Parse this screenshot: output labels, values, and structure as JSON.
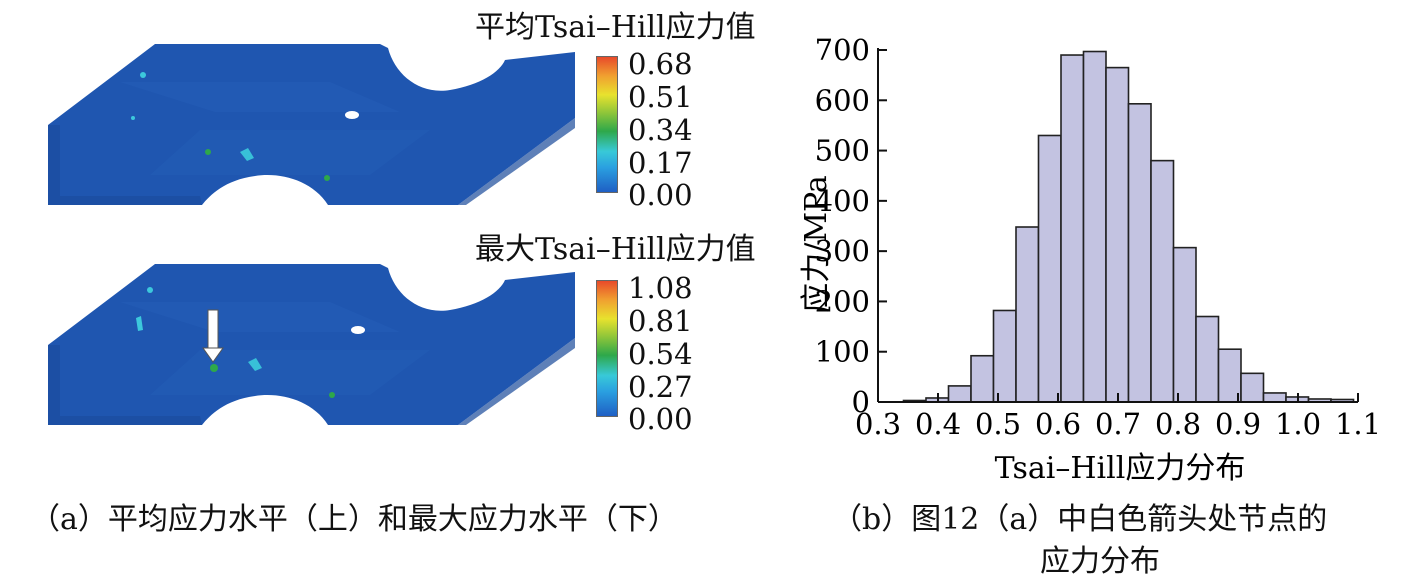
{
  "panel_a": {
    "top": {
      "title": "平均Tsai–Hill应力值",
      "ticks": [
        "0.68",
        "0.51",
        "0.34",
        "0.17",
        "0.00"
      ]
    },
    "bottom": {
      "title": "最大Tsai–Hill应力值",
      "ticks": [
        "1.08",
        "0.81",
        "0.54",
        "0.27",
        "0.00"
      ]
    },
    "caption": "（a）平均应力水平（上）和最大应力水平（下）"
  },
  "panel_b": {
    "caption_line1": "（b）图12（a）中白色箭头处节点的",
    "caption_line2": "应力分布"
  },
  "colors": {
    "bar_fill": "#c3c3e1",
    "bar_stroke": "#222222",
    "mesh": "#1f56b0",
    "mesh_dark": "#1a4a9a"
  },
  "chart_data": {
    "type": "bar",
    "title": "",
    "xlabel": "Tsai–Hill应力分布",
    "ylabel": "应力/MPa",
    "xlim": [
      0.3,
      1.1
    ],
    "ylim": [
      0,
      700
    ],
    "xticks": [
      "0.3",
      "0.4",
      "0.5",
      "0.6",
      "0.7",
      "0.8",
      "0.9",
      "1.0",
      "1.1"
    ],
    "yticks": [
      "0",
      "100",
      "200",
      "300",
      "400",
      "500",
      "600",
      "700"
    ],
    "bin_width": 0.0375,
    "bin_starts": [
      0.3425,
      0.38,
      0.4175,
      0.455,
      0.4925,
      0.53,
      0.5675,
      0.605,
      0.6425,
      0.68,
      0.7175,
      0.755,
      0.7925,
      0.83,
      0.8675,
      0.905,
      0.9425,
      0.98,
      1.0175,
      1.055
    ],
    "values": [
      3,
      8,
      32,
      92,
      182,
      348,
      530,
      690,
      697,
      665,
      593,
      480,
      307,
      170,
      105,
      57,
      18,
      10,
      6,
      5
    ]
  }
}
